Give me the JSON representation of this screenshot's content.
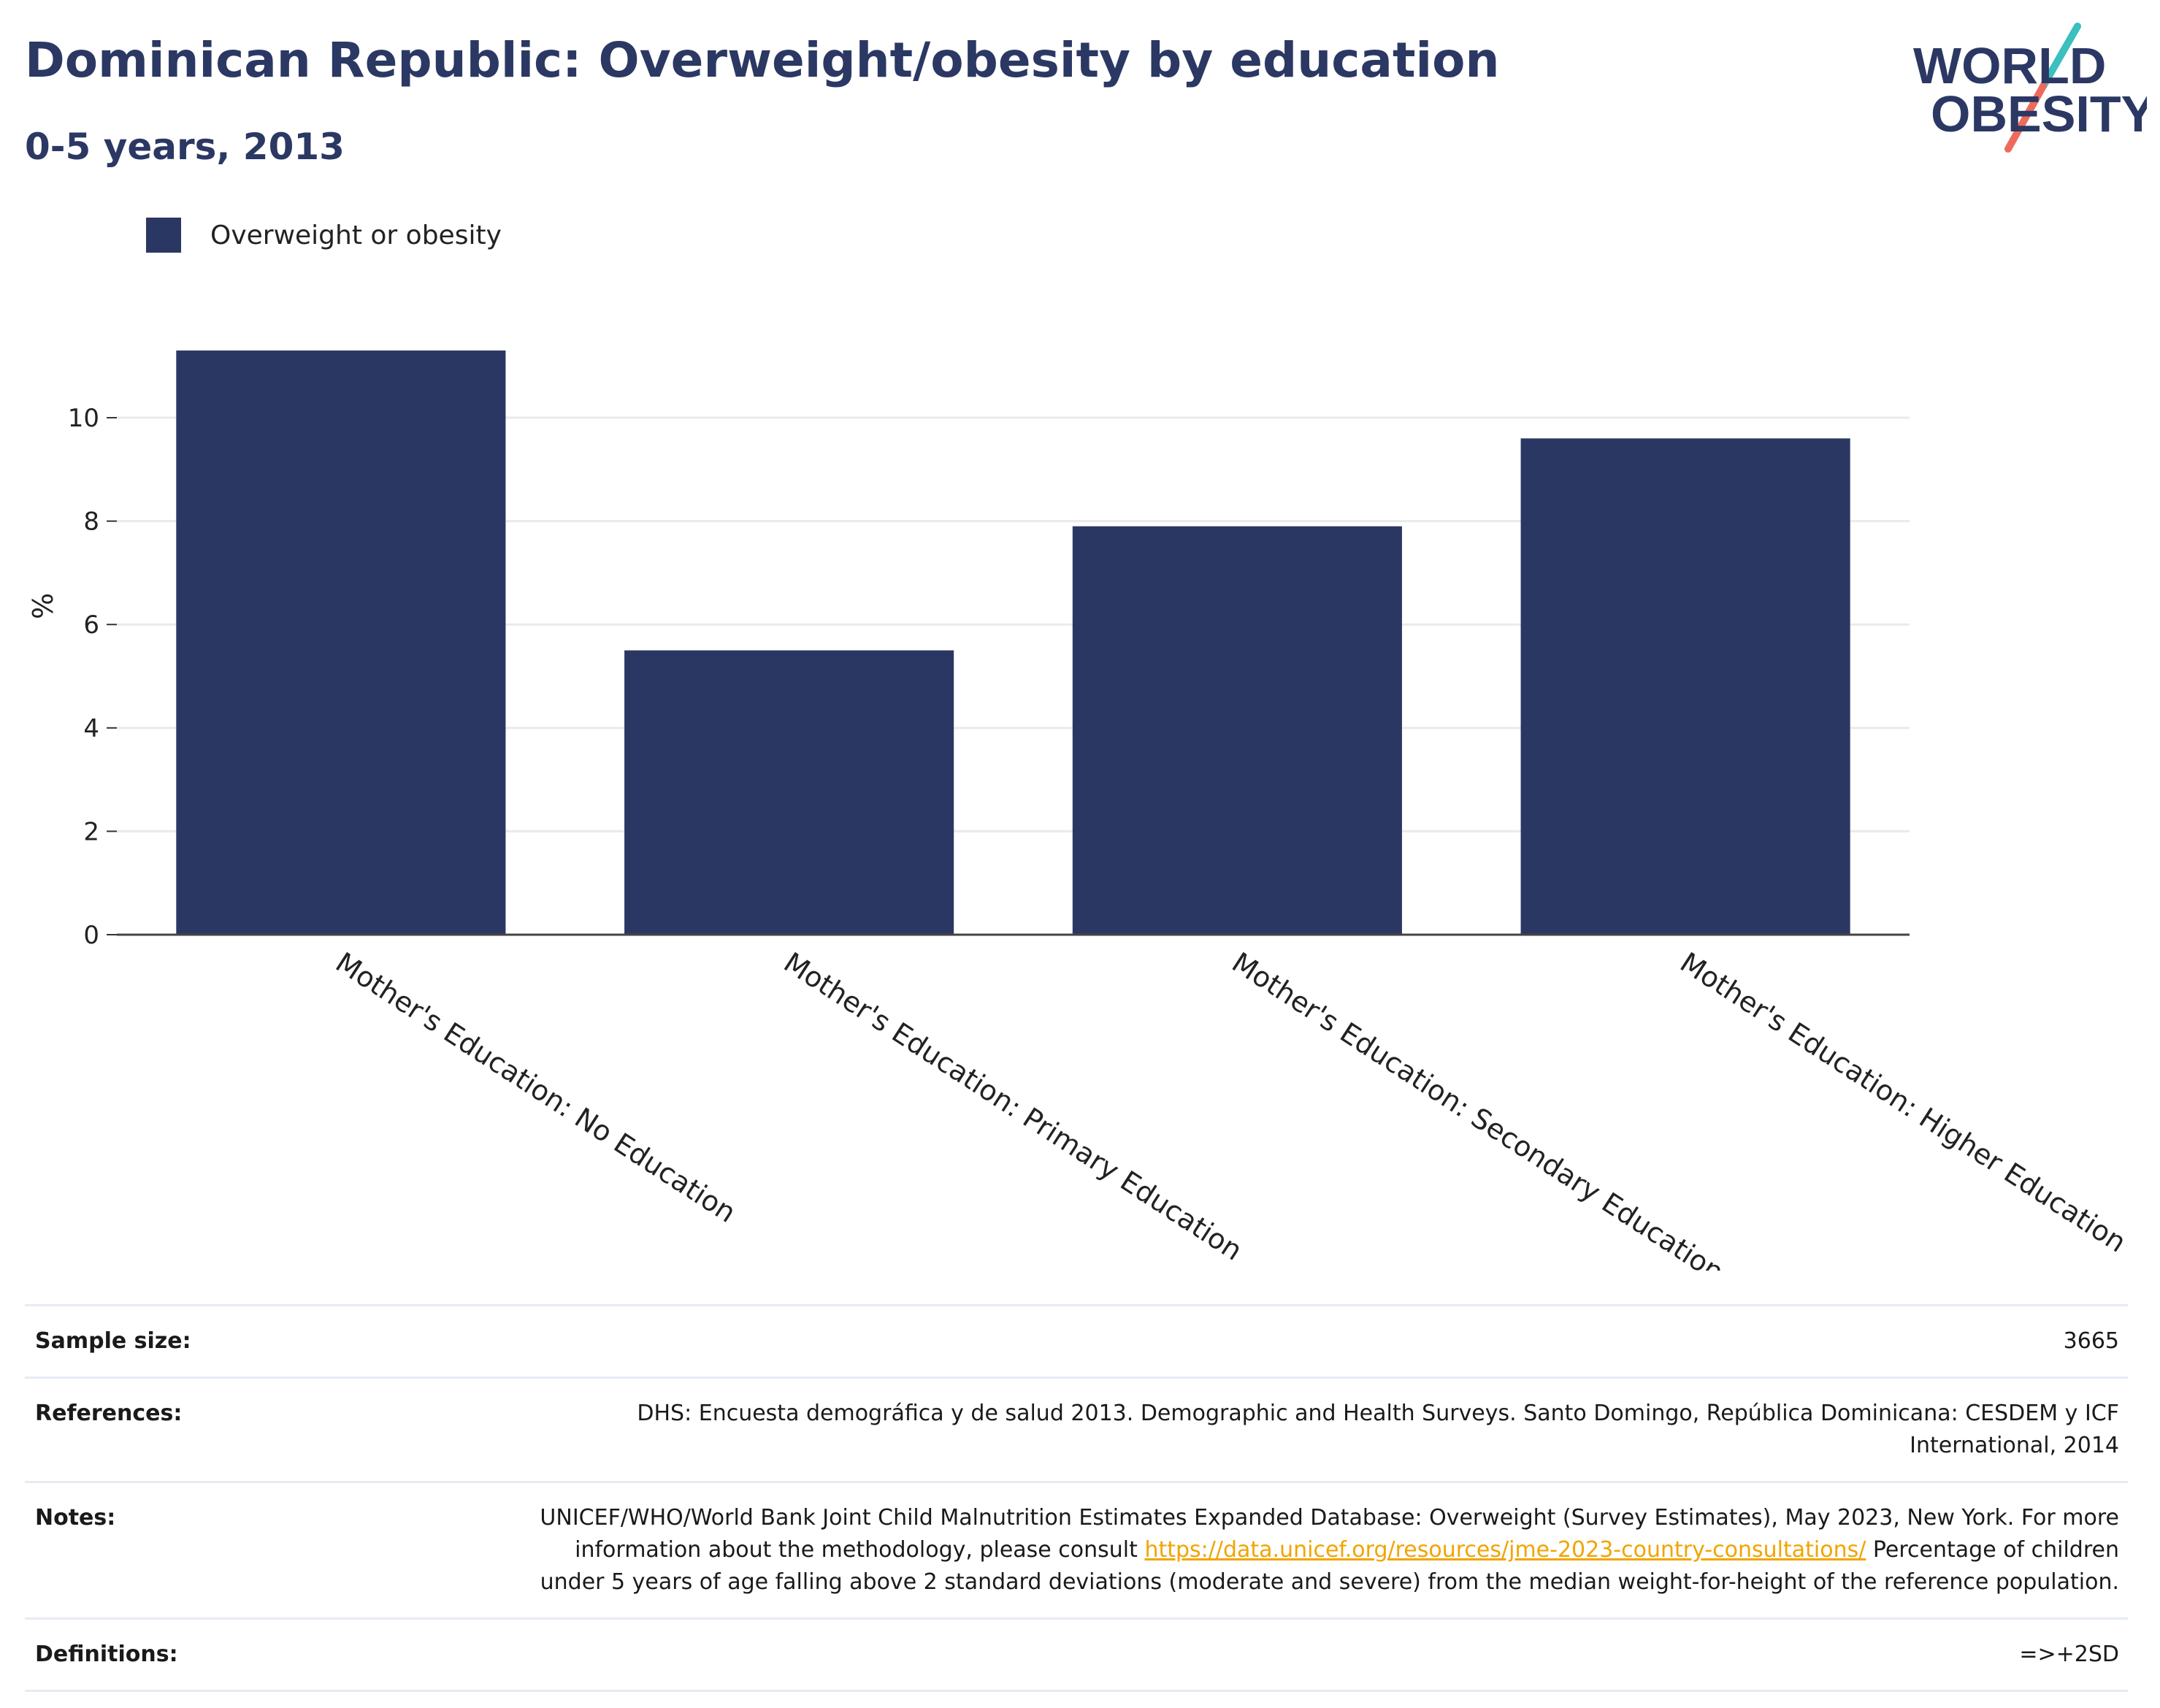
{
  "header": {
    "title": "Dominican Republic: Overweight/obesity by education",
    "subtitle": "0-5 years, 2013"
  },
  "logo": {
    "line1": "WORLD",
    "line2": "OBESITY",
    "colors": {
      "text": "#2b3863",
      "slash_top": "#3bbfbf",
      "slash_bottom": "#ee6b5c"
    }
  },
  "legend": {
    "label": "Overweight or obesity",
    "color": "#2b3763"
  },
  "chart_data": {
    "type": "bar",
    "categories": [
      "Mother's Education: No Education",
      "Mother's Education: Primary Education",
      "Mother's Education: Secondary Education",
      "Mother's Education: Higher Education"
    ],
    "series": [
      {
        "name": "Overweight or obesity",
        "values": [
          11.3,
          5.5,
          7.9,
          9.6
        ],
        "color": "#2b3763"
      }
    ],
    "ylabel": "%",
    "ylim": [
      0,
      11.3
    ],
    "yticks": [
      0,
      2,
      4,
      6,
      8,
      10
    ],
    "grid": true,
    "legend_position": "top-left"
  },
  "info": {
    "sample_size_label": "Sample size:",
    "sample_size_value": "3665",
    "references_label": "References:",
    "references_value": "DHS: Encuesta demográfica y de salud 2013. Demographic and Health Surveys. Santo Domingo, República Dominicana: CESDEM y ICF International, 2014",
    "notes_label": "Notes:",
    "notes_text1": "UNICEF/WHO/World Bank Joint Child Malnutrition Estimates Expanded Database: Overweight (Survey Estimates), May 2023, New York. For more information about the methodology, please consult ",
    "notes_link": "https://data.unicef.org/resources/jme-2023-country-consultations/",
    "notes_text2": " Percentage of children under 5 years of age falling above 2 standard deviations (moderate and severe) from the median weight-for-height of the reference population.",
    "definitions_label": "Definitions:",
    "definitions_value": "=>+2SD"
  }
}
